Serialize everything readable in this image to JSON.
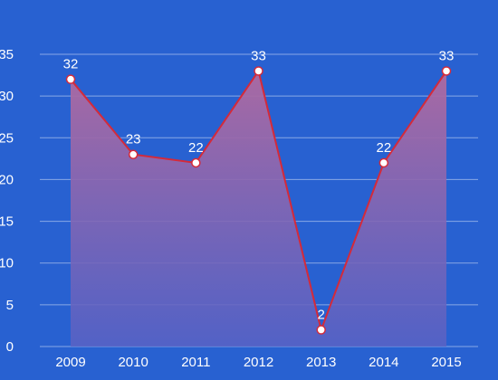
{
  "chart_data": {
    "type": "area",
    "categories": [
      "2009",
      "2010",
      "2011",
      "2012",
      "2013",
      "2014",
      "2015"
    ],
    "series": [
      {
        "values": [
          32,
          23,
          22,
          33,
          2,
          22,
          33
        ]
      }
    ],
    "ylim": [
      0,
      35
    ],
    "yticks": [
      "0",
      "5",
      "10",
      "15",
      "20",
      "25",
      "30",
      "35"
    ],
    "grid": true,
    "legend": "none",
    "title": "",
    "xlabel": "",
    "ylabel": ""
  },
  "colors": {
    "background": "#2861d1",
    "line": "#d42a3a",
    "area_top": "#b06aa0",
    "area_bottom": "#5a62c4",
    "marker_fill": "#ffffff",
    "text": "#ffffff"
  }
}
